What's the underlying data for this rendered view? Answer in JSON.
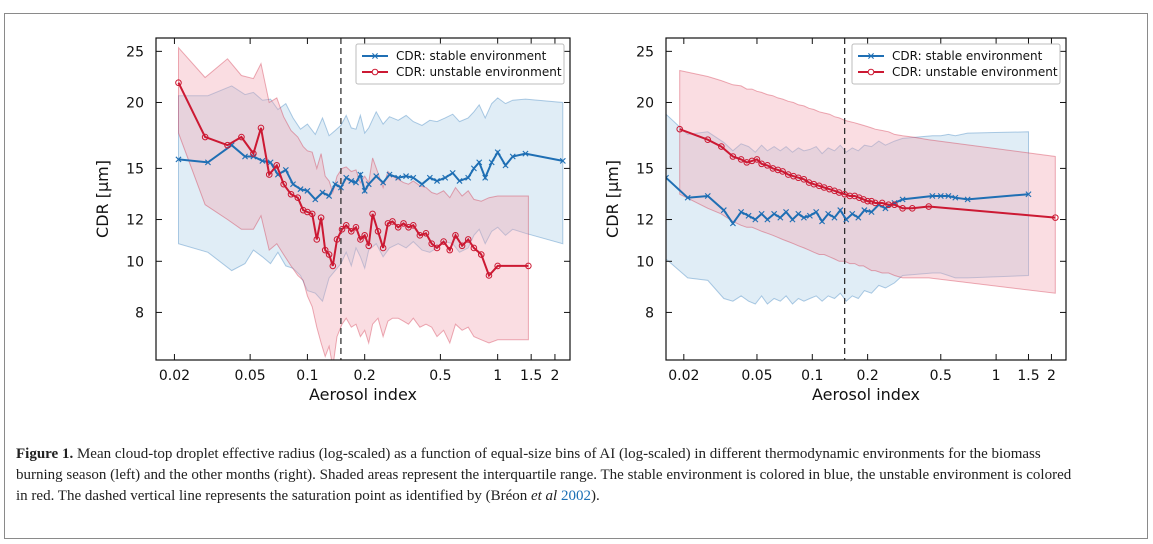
{
  "figure": {
    "caption_label": "Figure 1.",
    "caption_text": " Mean cloud-top droplet effective radius (log-scaled) as a function of equal-size bins of AI (log-scaled) in different thermodynamic environments for the biomass burning season (left) and the other months (right). Shaded areas represent the interquartile range. The stable environment is colored in blue, the unstable environment is colored in red. The dashed vertical line represents the saturation point as identified by (Bréon ",
    "caption_etal": "et al",
    "caption_cite_year": "2002",
    "caption_end": ")."
  },
  "colors": {
    "stable": "#1f6fb4",
    "stable_fill": "#aed0e8",
    "unstable": "#cc1933",
    "unstable_fill": "#f2a6b3"
  },
  "chart_data": [
    {
      "type": "line",
      "xlabel": "Aerosol index",
      "ylabel": "CDR [μm]",
      "xscale": "log",
      "yscale": "log",
      "xlim": [
        0.016,
        2.4
      ],
      "ylim": [
        6.5,
        26.5
      ],
      "xticks": [
        0.02,
        0.05,
        0.1,
        0.2,
        0.5,
        1,
        1.5,
        2
      ],
      "xticklabels": [
        "0.02",
        "0.05",
        "0.1",
        "0.2",
        "0.5",
        "1",
        "1.5",
        "2"
      ],
      "yticks": [
        8,
        10,
        12,
        15,
        20,
        25
      ],
      "yticklabels": [
        "8",
        "10",
        "12",
        "15",
        "20",
        "25"
      ],
      "vline": 0.15,
      "legend_position": "top-right",
      "series": [
        {
          "name": "CDR: stable environment",
          "marker": "x",
          "x": [
            0.021,
            0.03,
            0.04,
            0.047,
            0.052,
            0.058,
            0.064,
            0.07,
            0.077,
            0.084,
            0.092,
            0.1,
            0.11,
            0.12,
            0.13,
            0.14,
            0.15,
            0.16,
            0.17,
            0.18,
            0.19,
            0.2,
            0.21,
            0.23,
            0.25,
            0.27,
            0.3,
            0.33,
            0.36,
            0.4,
            0.44,
            0.48,
            0.53,
            0.58,
            0.63,
            0.7,
            0.75,
            0.8,
            0.86,
            0.93,
            1.0,
            1.1,
            1.2,
            1.4,
            2.2
          ],
          "y": [
            15.6,
            15.4,
            16.6,
            15.8,
            15.8,
            15.5,
            15.4,
            14.6,
            14.9,
            14.0,
            13.7,
            13.6,
            13.1,
            13.5,
            13.3,
            14.0,
            13.8,
            14.4,
            14.2,
            14.1,
            14.6,
            13.6,
            14.0,
            14.5,
            14.1,
            14.6,
            14.4,
            14.5,
            14.4,
            14.0,
            14.4,
            14.2,
            14.4,
            14.7,
            14.2,
            14.4,
            15.0,
            15.4,
            14.4,
            15.4,
            16.1,
            15.2,
            15.8,
            16.0,
            15.5
          ],
          "q1": [
            10.8,
            10.4,
            9.6,
            9.9,
            10.5,
            10.2,
            9.9,
            10.4,
            9.8,
            9.7,
            9.4,
            8.8,
            8.7,
            8.4,
            9.3,
            9.6,
            9.9,
            10.4,
            9.8,
            10.6,
            10.2,
            9.7,
            10.5,
            10.8,
            10.2,
            10.6,
            10.8,
            10.6,
            10.9,
            10.5,
            10.4,
            10.6,
            10.9,
            10.8,
            10.4,
            10.6,
            11.2,
            11.5,
            10.8,
            11.4,
            11.6,
            11.2,
            11.5,
            11.3,
            10.8
          ],
          "q3": [
            20.6,
            20.6,
            21.5,
            20.7,
            20.9,
            20.2,
            20.3,
            19.4,
            19.9,
            18.7,
            17.8,
            18.2,
            17.4,
            18.7,
            17.3,
            17.7,
            18.1,
            18.9,
            17.9,
            17.8,
            18.9,
            17.5,
            17.9,
            19.2,
            18.2,
            18.8,
            18.5,
            18.9,
            18.4,
            18.1,
            18.5,
            18.4,
            18.7,
            19.0,
            18.4,
            18.7,
            19.2,
            19.8,
            18.7,
            19.9,
            20.4,
            19.9,
            20.2,
            20.3,
            20.0
          ]
        },
        {
          "name": "CDR: unstable environment",
          "marker": "o",
          "x": [
            0.021,
            0.029,
            0.038,
            0.045,
            0.052,
            0.057,
            0.063,
            0.069,
            0.075,
            0.082,
            0.089,
            0.095,
            0.1,
            0.106,
            0.112,
            0.118,
            0.124,
            0.13,
            0.136,
            0.143,
            0.152,
            0.16,
            0.17,
            0.18,
            0.19,
            0.2,
            0.21,
            0.22,
            0.235,
            0.25,
            0.265,
            0.28,
            0.3,
            0.32,
            0.34,
            0.36,
            0.39,
            0.42,
            0.45,
            0.48,
            0.52,
            0.56,
            0.6,
            0.65,
            0.7,
            0.75,
            0.82,
            0.9,
            1.0,
            1.45
          ],
          "y": [
            21.8,
            17.2,
            16.6,
            17.2,
            16.0,
            17.9,
            14.6,
            15.2,
            14.0,
            13.4,
            13.2,
            12.5,
            12.4,
            12.3,
            11.0,
            12.1,
            10.5,
            10.3,
            9.8,
            11.0,
            11.5,
            11.7,
            11.4,
            11.6,
            11.0,
            11.2,
            10.7,
            12.3,
            11.4,
            10.6,
            11.8,
            11.9,
            11.6,
            11.8,
            11.6,
            11.7,
            11.2,
            11.3,
            10.8,
            10.6,
            10.9,
            10.5,
            11.2,
            10.7,
            11.0,
            10.6,
            10.3,
            9.4,
            9.8,
            9.8
          ],
          "q1": [
            17.5,
            12.8,
            12.0,
            11.5,
            11.5,
            12.2,
            10.5,
            10.8,
            10.3,
            9.8,
            9.4,
            9.2,
            8.6,
            8.2,
            7.5,
            7.0,
            6.6,
            6.9,
            6.3,
            7.2,
            7.6,
            7.8,
            7.5,
            7.6,
            7.2,
            7.4,
            7.0,
            7.6,
            7.8,
            7.2,
            7.7,
            7.8,
            7.8,
            7.7,
            7.6,
            7.8,
            7.5,
            7.6,
            7.5,
            7.2,
            7.4,
            7.0,
            7.6,
            7.4,
            7.5,
            7.2,
            7.1,
            7.0,
            7.1,
            7.1
          ],
          "q3": [
            25.4,
            22.3,
            24.2,
            22.5,
            22.2,
            23.7,
            20.0,
            20.4,
            18.8,
            17.7,
            17.2,
            16.5,
            16.2,
            16.1,
            15.0,
            16.0,
            14.5,
            14.2,
            13.5,
            14.5,
            15.0,
            15.1,
            14.8,
            14.9,
            14.1,
            14.5,
            14.1,
            15.7,
            14.7,
            13.8,
            14.8,
            14.5,
            14.3,
            14.1,
            14.0,
            14.2,
            13.9,
            13.8,
            13.5,
            13.4,
            13.6,
            13.2,
            13.8,
            13.3,
            13.6,
            13.1,
            13.0,
            13.2,
            13.3,
            13.3
          ]
        }
      ]
    },
    {
      "type": "line",
      "xlabel": "Aerosol index",
      "ylabel": "CDR [μm]",
      "xscale": "log",
      "yscale": "log",
      "xlim": [
        0.016,
        2.4
      ],
      "ylim": [
        6.5,
        26.5
      ],
      "xticks": [
        0.02,
        0.05,
        0.1,
        0.2,
        0.5,
        1,
        1.5,
        2
      ],
      "xticklabels": [
        "0.02",
        "0.05",
        "0.1",
        "0.2",
        "0.5",
        "1",
        "1.5",
        "2"
      ],
      "yticks": [
        8,
        10,
        12,
        15,
        20,
        25
      ],
      "yticklabels": [
        "8",
        "10",
        "12",
        "15",
        "20",
        "25"
      ],
      "vline": 0.15,
      "legend_position": "top-right",
      "series": [
        {
          "name": "CDR: stable environment",
          "marker": "x",
          "x": [
            0.016,
            0.021,
            0.027,
            0.033,
            0.037,
            0.041,
            0.045,
            0.049,
            0.053,
            0.057,
            0.062,
            0.067,
            0.072,
            0.078,
            0.084,
            0.09,
            0.097,
            0.105,
            0.113,
            0.122,
            0.132,
            0.142,
            0.153,
            0.165,
            0.178,
            0.192,
            0.21,
            0.23,
            0.25,
            0.28,
            0.31,
            0.45,
            0.5,
            0.55,
            0.6,
            0.7,
            1.5
          ],
          "y": [
            14.4,
            13.2,
            13.3,
            12.5,
            11.8,
            12.4,
            12.2,
            12.0,
            12.3,
            12.0,
            12.3,
            12.1,
            12.4,
            12.0,
            12.3,
            12.1,
            12.2,
            12.4,
            11.9,
            12.3,
            12.1,
            12.5,
            12.0,
            12.3,
            12.1,
            12.5,
            12.4,
            12.8,
            12.6,
            12.9,
            13.1,
            13.3,
            13.3,
            13.3,
            13.2,
            13.1,
            13.4
          ],
          "q1": [
            10.1,
            9.3,
            9.2,
            8.5,
            8.4,
            8.6,
            8.4,
            8.3,
            8.6,
            8.3,
            8.5,
            8.4,
            8.6,
            8.3,
            8.5,
            8.4,
            8.5,
            8.6,
            8.4,
            8.6,
            8.5,
            8.7,
            8.4,
            8.6,
            8.5,
            8.8,
            8.7,
            9.0,
            8.9,
            9.1,
            9.4,
            9.5,
            9.5,
            9.4,
            9.3,
            9.3,
            9.4
          ],
          "q3": [
            19.0,
            17.4,
            17.6,
            16.8,
            16.2,
            16.7,
            16.5,
            16.1,
            16.6,
            16.2,
            16.5,
            16.2,
            16.5,
            16.1,
            16.4,
            16.2,
            16.3,
            16.5,
            16.0,
            16.4,
            16.2,
            16.6,
            16.1,
            16.4,
            16.2,
            16.6,
            16.5,
            16.9,
            16.6,
            16.9,
            17.1,
            17.3,
            17.3,
            17.4,
            17.3,
            17.5,
            17.6
          ]
        },
        {
          "name": "CDR: unstable environment",
          "marker": "o",
          "x": [
            0.019,
            0.027,
            0.032,
            0.037,
            0.041,
            0.044,
            0.047,
            0.05,
            0.053,
            0.057,
            0.061,
            0.065,
            0.069,
            0.074,
            0.079,
            0.084,
            0.09,
            0.096,
            0.102,
            0.109,
            0.116,
            0.124,
            0.132,
            0.14,
            0.15,
            0.16,
            0.17,
            0.18,
            0.19,
            0.2,
            0.21,
            0.22,
            0.24,
            0.26,
            0.28,
            0.31,
            0.35,
            0.43,
            2.1
          ],
          "y": [
            17.8,
            17.0,
            16.5,
            15.8,
            15.6,
            15.4,
            15.5,
            15.6,
            15.3,
            15.2,
            15.0,
            14.9,
            14.8,
            14.6,
            14.5,
            14.4,
            14.3,
            14.1,
            14.0,
            13.9,
            13.8,
            13.7,
            13.6,
            13.5,
            13.4,
            13.3,
            13.3,
            13.2,
            13.1,
            13.0,
            13.0,
            12.9,
            12.9,
            12.8,
            12.8,
            12.6,
            12.6,
            12.7,
            12.1
          ],
          "q1": [
            13.4,
            12.6,
            12.3,
            11.9,
            11.7,
            11.6,
            11.6,
            11.5,
            11.4,
            11.3,
            11.2,
            11.1,
            11.0,
            10.9,
            10.8,
            10.7,
            10.6,
            10.5,
            10.4,
            10.3,
            10.3,
            10.2,
            10.1,
            10.0,
            10.0,
            9.9,
            9.9,
            9.8,
            9.8,
            9.7,
            9.6,
            9.6,
            9.5,
            9.5,
            9.4,
            9.3,
            9.3,
            9.3,
            8.7
          ],
          "q3": [
            23.0,
            22.4,
            22.0,
            21.6,
            21.5,
            21.2,
            21.2,
            21.0,
            20.9,
            20.7,
            20.6,
            20.4,
            20.3,
            20.1,
            20.0,
            19.8,
            19.7,
            19.5,
            19.4,
            19.2,
            19.1,
            19.0,
            18.8,
            18.7,
            18.5,
            18.4,
            18.3,
            18.2,
            18.1,
            18.0,
            17.9,
            17.8,
            17.7,
            17.6,
            17.4,
            17.3,
            17.2,
            17.0,
            15.8
          ]
        }
      ]
    }
  ]
}
